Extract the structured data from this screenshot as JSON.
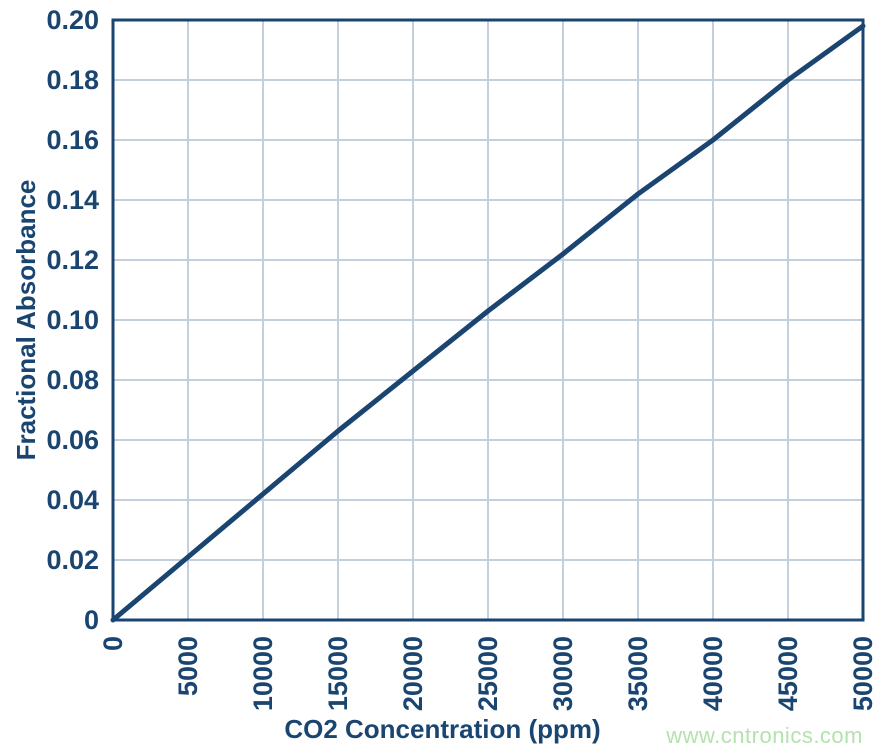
{
  "chart_data": {
    "type": "line",
    "title": "",
    "xlabel": "CO2 Concentration (ppm)",
    "ylabel": "Fractional Absorbance",
    "x": [
      0,
      5000,
      10000,
      15000,
      20000,
      25000,
      30000,
      35000,
      40000,
      45000,
      50000
    ],
    "series": [
      {
        "name": "Fractional Absorbance",
        "values": [
          0,
          0.021,
          0.042,
          0.063,
          0.083,
          0.103,
          0.122,
          0.142,
          0.16,
          0.18,
          0.198
        ]
      }
    ],
    "xlim": [
      0,
      50000
    ],
    "ylim": [
      0,
      0.2
    ],
    "x_ticks": [
      0,
      5000,
      10000,
      15000,
      20000,
      25000,
      30000,
      35000,
      40000,
      45000,
      50000
    ],
    "x_tick_labels": [
      "0",
      "5000",
      "10000",
      "15000",
      "20000",
      "25000",
      "30000",
      "35000",
      "40000",
      "45000",
      "50000"
    ],
    "y_ticks": [
      0,
      0.02,
      0.04,
      0.06,
      0.08,
      0.1,
      0.12,
      0.14,
      0.16,
      0.18,
      0.2
    ],
    "y_tick_labels": [
      "0",
      "0.02",
      "0.04",
      "0.06",
      "0.08",
      "0.10",
      "0.12",
      "0.14",
      "0.16",
      "0.18",
      "0.20"
    ],
    "grid": true,
    "legend": false,
    "x_tick_rotation": -90
  },
  "watermark": {
    "text": "www.cntronics.com"
  },
  "colors": {
    "line": "#1a4571",
    "border": "#1a4571",
    "grid": "#c3cfdc",
    "text": "#1a4571",
    "watermark": "#b3e3ac",
    "background": "#ffffff"
  }
}
